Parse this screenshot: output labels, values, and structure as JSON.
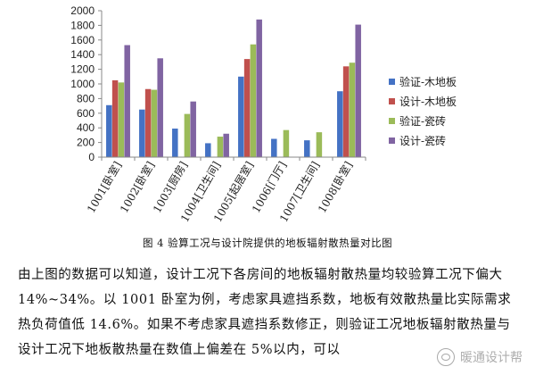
{
  "chart_data": {
    "type": "bar",
    "categories": [
      "1001[卧室]",
      "1002[卧室]",
      "1003[厨房]",
      "1004[卫生间]",
      "1005[起居室]",
      "1006[门厅]",
      "1007[卫生间]",
      "1008[卧室]"
    ],
    "series": [
      {
        "name": "验证-木地板",
        "color": "#4472C4",
        "values": [
          710,
          650,
          390,
          190,
          1100,
          250,
          230,
          900
        ]
      },
      {
        "name": "设计-木地板",
        "color": "#C0504D",
        "values": [
          1050,
          930,
          null,
          null,
          1340,
          null,
          null,
          1240
        ]
      },
      {
        "name": "验证-瓷砖",
        "color": "#9BBB59",
        "values": [
          1020,
          920,
          590,
          280,
          1540,
          370,
          340,
          1290
        ]
      },
      {
        "name": "设计-瓷砖",
        "color": "#8064A2",
        "values": [
          1530,
          1350,
          760,
          320,
          1880,
          null,
          null,
          1810
        ]
      }
    ],
    "yticks": [
      "0",
      "200",
      "400",
      "600",
      "800",
      "1000",
      "1200",
      "1400",
      "1600",
      "1800",
      "2000"
    ],
    "ylim": [
      0,
      2000
    ],
    "grid": false,
    "legend": "right"
  },
  "caption": "图 4  验算工况与设计院提供的地板辐射散热量对比图",
  "paragraph": "由上图的数据可以知道，设计工况下各房间的地板辐射散热量均较验算工况下偏大 14%~34%。以 1001 卧室为例，考虑家具遮挡系数，地板有效散热量比实际需求热负荷值低 14.6%。如果不考虑家具遮挡系数修正，则验证工况地板辐射散热量与设计工况下地板散热量在数值上偏差在 5%以内，可以",
  "watermark": "暖通设计帮",
  "watermark_icon": "wechat-icon"
}
